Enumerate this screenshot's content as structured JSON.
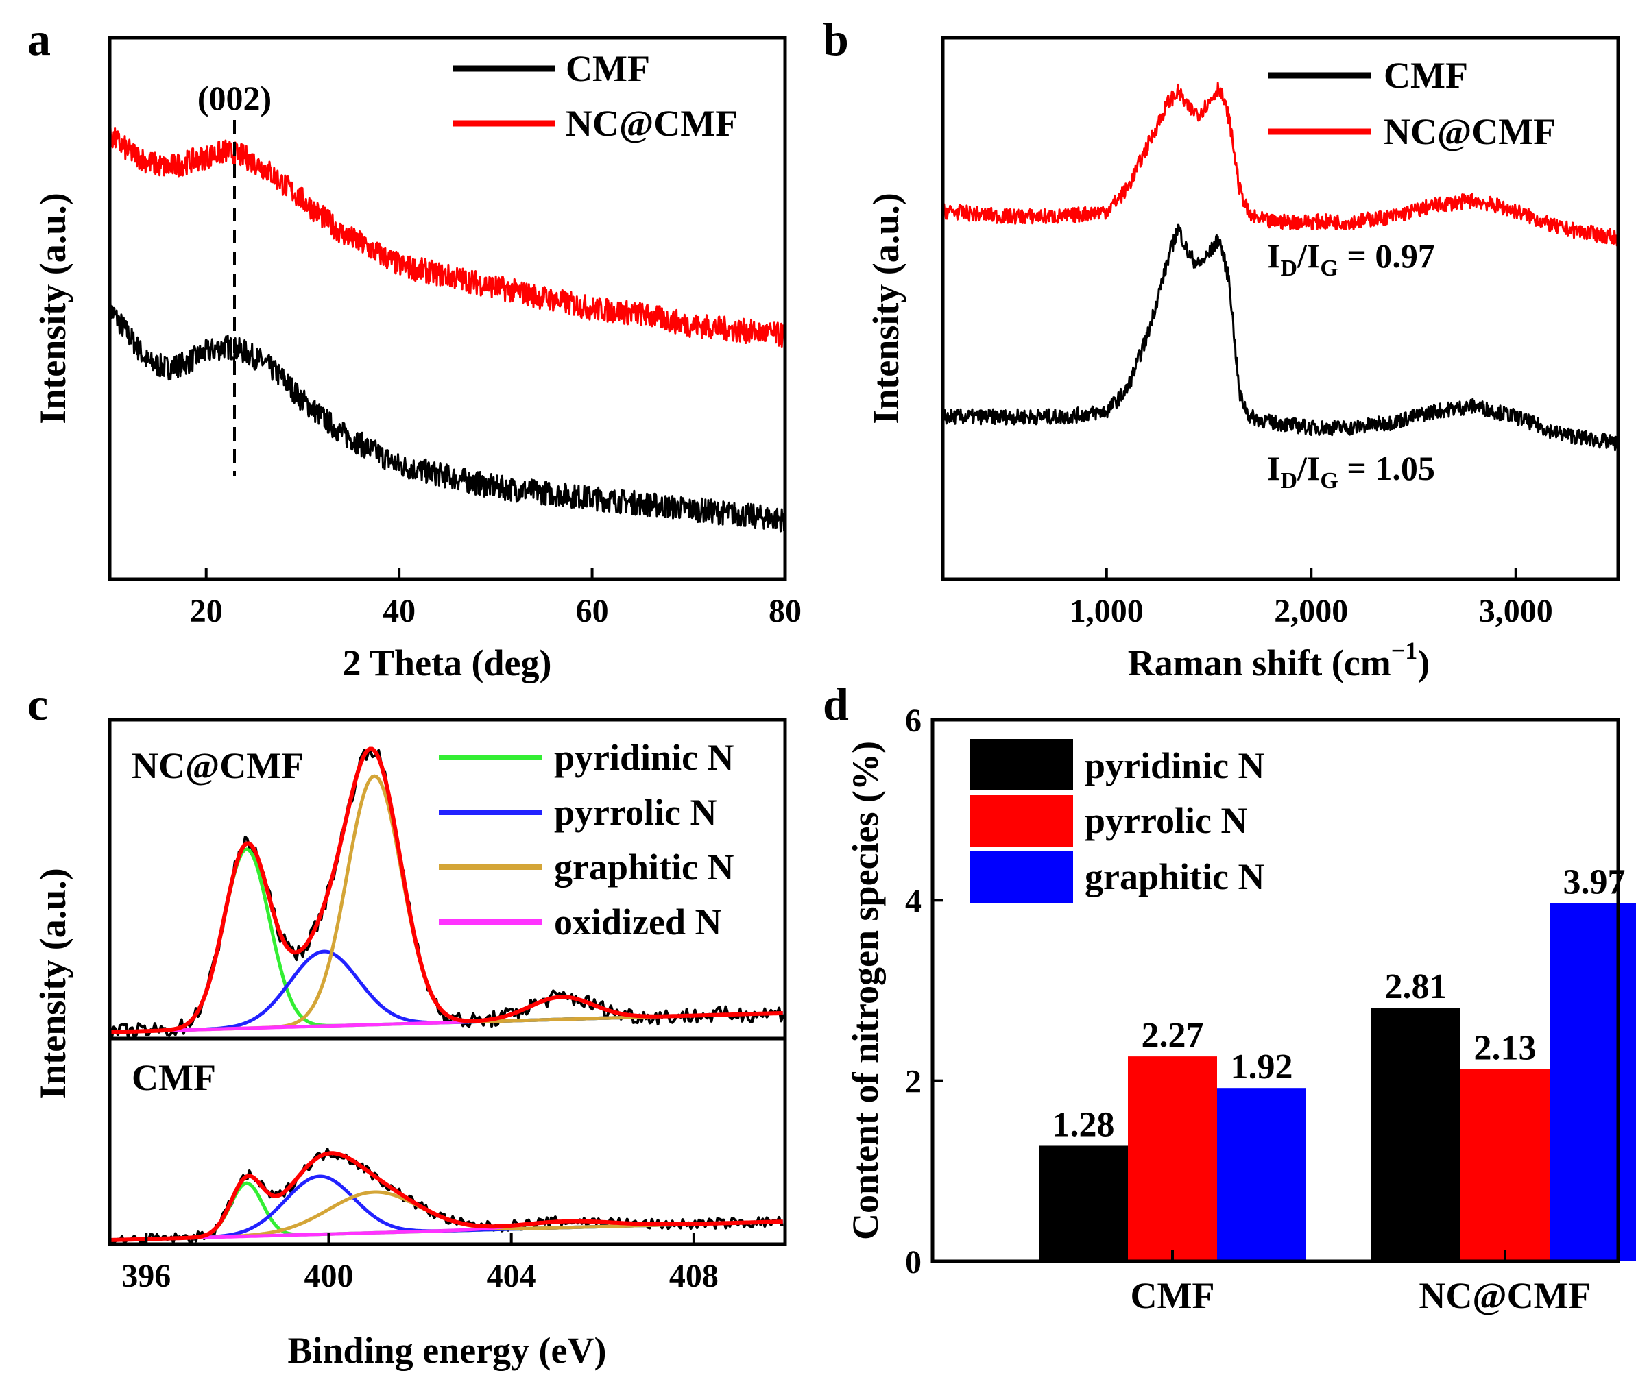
{
  "chart_data": [
    {
      "panel": "a",
      "type": "line",
      "xlabel": "2 Theta (deg)",
      "ylabel": "Intensity (a.u.)",
      "xlim": [
        10,
        80
      ],
      "xticks": [
        20,
        40,
        60,
        80
      ],
      "annotation": "(002)",
      "annotation_x": 22.5,
      "series": [
        {
          "name": "CMF",
          "color": "#000000",
          "x": [
            10,
            12,
            14,
            16,
            18,
            20,
            22,
            24,
            26,
            28,
            30,
            32,
            34,
            36,
            38,
            40,
            45,
            50,
            55,
            60,
            65,
            70,
            75,
            80
          ],
          "y": [
            0.5,
            0.45,
            0.4,
            0.39,
            0.4,
            0.42,
            0.43,
            0.42,
            0.4,
            0.37,
            0.33,
            0.3,
            0.27,
            0.25,
            0.23,
            0.21,
            0.19,
            0.17,
            0.16,
            0.15,
            0.14,
            0.13,
            0.12,
            0.11
          ]
        },
        {
          "name": "NC@CMF",
          "color": "#ff0000",
          "x": [
            10,
            12,
            14,
            16,
            18,
            20,
            22,
            24,
            26,
            28,
            30,
            32,
            34,
            36,
            38,
            40,
            45,
            50,
            55,
            60,
            65,
            70,
            75,
            80
          ],
          "y": [
            0.82,
            0.79,
            0.77,
            0.76,
            0.77,
            0.78,
            0.79,
            0.78,
            0.76,
            0.73,
            0.7,
            0.67,
            0.64,
            0.62,
            0.6,
            0.58,
            0.56,
            0.54,
            0.52,
            0.5,
            0.49,
            0.47,
            0.46,
            0.45
          ]
        }
      ]
    },
    {
      "panel": "b",
      "type": "line",
      "xlabel": "Raman shift (cm",
      "xlabel_sup": "−1",
      "xlabel_end": ")",
      "ylabel": "Intensity (a.u.)",
      "xlim": [
        200,
        3500
      ],
      "xticks": [
        1000,
        2000,
        3000
      ],
      "xtick_labels": [
        "1,000",
        "2,000",
        "3,000"
      ],
      "annotations": [
        {
          "pre": "I",
          "sub1": "D",
          "mid": "/I",
          "sub2": "G",
          "post": " = 0.97"
        },
        {
          "pre": "I",
          "sub1": "D",
          "mid": "/I",
          "sub2": "G",
          "post": " = 1.05"
        }
      ],
      "series": [
        {
          "name": "CMF",
          "color": "#000000",
          "x": [
            200,
            500,
            800,
            1000,
            1100,
            1200,
            1300,
            1350,
            1400,
            1450,
            1500,
            1550,
            1600,
            1650,
            1700,
            1800,
            2000,
            2200,
            2400,
            2600,
            2800,
            3000,
            3200,
            3500
          ],
          "y": [
            0.3,
            0.3,
            0.3,
            0.31,
            0.35,
            0.45,
            0.59,
            0.65,
            0.6,
            0.58,
            0.6,
            0.63,
            0.55,
            0.34,
            0.3,
            0.29,
            0.28,
            0.28,
            0.29,
            0.31,
            0.32,
            0.3,
            0.27,
            0.25
          ]
        },
        {
          "name": "NC@CMF",
          "color": "#ff0000",
          "x": [
            200,
            500,
            800,
            1000,
            1100,
            1200,
            1300,
            1350,
            1400,
            1450,
            1500,
            1550,
            1600,
            1650,
            1700,
            1800,
            2000,
            2200,
            2400,
            2600,
            2800,
            3000,
            3200,
            3500
          ],
          "y": [
            0.68,
            0.67,
            0.67,
            0.68,
            0.72,
            0.8,
            0.88,
            0.9,
            0.87,
            0.86,
            0.88,
            0.91,
            0.85,
            0.72,
            0.67,
            0.66,
            0.66,
            0.66,
            0.67,
            0.69,
            0.7,
            0.68,
            0.65,
            0.63
          ]
        }
      ]
    },
    {
      "panel": "c",
      "type": "line",
      "xlabel": "Binding energy (eV)",
      "ylabel": "Intensity (a.u.)",
      "xlim": [
        395.2,
        410
      ],
      "xticks": [
        396,
        400,
        404,
        408
      ],
      "subpanels": [
        {
          "label": "NC@CMF",
          "components": [
            {
              "name": "pyridinic N",
              "center": 398.2,
              "width": 0.5,
              "height": 0.72
            },
            {
              "name": "pyrrolic N",
              "center": 399.9,
              "width": 0.75,
              "height": 0.3
            },
            {
              "name": "graphitic N",
              "center": 401.0,
              "width": 0.6,
              "height": 1.0
            },
            {
              "name": "oxidized N",
              "center": 405.1,
              "width": 0.7,
              "height": 0.09
            }
          ]
        },
        {
          "label": "CMF",
          "components": [
            {
              "name": "pyridinic N",
              "center": 398.2,
              "width": 0.35,
              "height": 0.43
            },
            {
              "name": "pyrrolic N",
              "center": 399.8,
              "width": 0.75,
              "height": 0.47
            },
            {
              "name": "graphitic N",
              "center": 401.0,
              "width": 1.0,
              "height": 0.33
            },
            {
              "name": "oxidized N",
              "center": 405.2,
              "width": 1.0,
              "height": 0.05
            }
          ]
        }
      ],
      "legend": [
        {
          "name": "pyridinic N",
          "color": "#33ee33"
        },
        {
          "name": "pyrrolic N",
          "color": "#2222ff"
        },
        {
          "name": "graphitic N",
          "color": "#d4a537"
        },
        {
          "name": "oxidized N",
          "color": "#ff33ff"
        }
      ],
      "fit_color": "#ff0000",
      "raw_color": "#000000"
    },
    {
      "panel": "d",
      "type": "bar",
      "ylabel": "Content of nitrogen species (%)",
      "ylim": [
        0,
        6
      ],
      "yticks": [
        0,
        2,
        4,
        6
      ],
      "categories": [
        "CMF",
        "NC@CMF"
      ],
      "series": [
        {
          "name": "pyridinic N",
          "color": "#000000",
          "values": [
            1.28,
            2.81
          ],
          "labels": [
            "1.28",
            "2.81"
          ]
        },
        {
          "name": "pyrrolic N",
          "color": "#ff0000",
          "values": [
            2.27,
            2.13
          ],
          "labels": [
            "2.27",
            "2.13"
          ]
        },
        {
          "name": "graphitic N",
          "color": "#0000ff",
          "values": [
            1.92,
            3.97
          ],
          "labels": [
            "1.92",
            "3.97"
          ]
        }
      ]
    }
  ]
}
